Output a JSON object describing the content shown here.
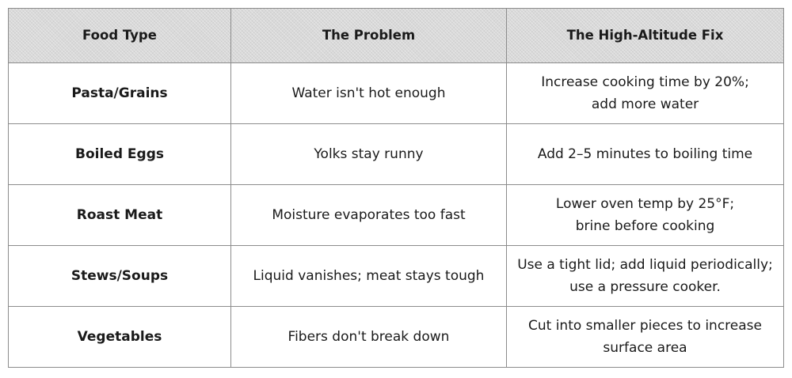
{
  "table": {
    "headers": [
      "Food Type",
      "The Problem",
      "The High-Altitude Fix"
    ],
    "rows": [
      {
        "food": "Pasta/Grains",
        "problem": "Water isn't hot enough",
        "fix": [
          "Increase cooking time by 20%;",
          "add more water"
        ]
      },
      {
        "food": "Boiled Eggs",
        "problem": "Yolks stay runny",
        "fix": [
          "Add 2–5 minutes to boiling time"
        ]
      },
      {
        "food": "Roast Meat",
        "problem": "Moisture evaporates too fast",
        "fix": [
          "Lower oven temp by 25°F;",
          "brine before cooking"
        ]
      },
      {
        "food": "Stews/Soups",
        "problem": "Liquid vanishes; meat stays tough",
        "fix": [
          "Use a tight lid; add liquid periodically;",
          "use a pressure cooker."
        ]
      },
      {
        "food": "Vegetables",
        "problem": "Fibers don't break down",
        "fix": [
          "Cut into smaller pieces to increase",
          "surface area"
        ]
      }
    ]
  }
}
